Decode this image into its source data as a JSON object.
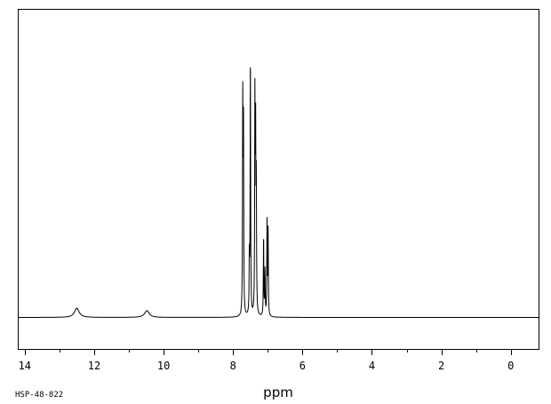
{
  "chart_data": {
    "type": "line",
    "title": "",
    "xlabel": "ppm",
    "ylabel": "",
    "x_reversed": true,
    "xlim": [
      14.2,
      -0.8
    ],
    "ylim": [
      0,
      1.0
    ],
    "x_ticks_major": [
      14,
      12,
      10,
      8,
      6,
      4,
      2,
      0
    ],
    "x_tick_labels": [
      "14",
      "12",
      "10",
      "8",
      "6",
      "4",
      "2",
      "0"
    ],
    "x_ticks_minor": [
      13,
      11,
      9,
      7,
      5,
      3,
      1
    ],
    "grid": false,
    "legend": "none",
    "baseline": 0.05,
    "series": [
      {
        "peaks": [
          {
            "ppm": 12.5,
            "height": 0.033,
            "width": 0.08
          },
          {
            "ppm": 10.48,
            "height": 0.024,
            "width": 0.08
          },
          {
            "ppm": 7.72,
            "height": 0.74,
            "width": 0.008
          },
          {
            "ppm": 7.7,
            "height": 0.68,
            "width": 0.008
          },
          {
            "ppm": 7.53,
            "height": 0.2,
            "width": 0.008
          },
          {
            "ppm": 7.5,
            "height": 0.92,
            "width": 0.008
          },
          {
            "ppm": 7.37,
            "height": 0.74,
            "width": 0.008
          },
          {
            "ppm": 7.35,
            "height": 0.62,
            "width": 0.008
          },
          {
            "ppm": 7.33,
            "height": 0.44,
            "width": 0.008
          },
          {
            "ppm": 7.12,
            "height": 0.28,
            "width": 0.008
          },
          {
            "ppm": 7.08,
            "height": 0.16,
            "width": 0.008
          },
          {
            "ppm": 7.02,
            "height": 0.33,
            "width": 0.008
          },
          {
            "ppm": 6.99,
            "height": 0.3,
            "width": 0.008
          }
        ]
      }
    ],
    "colors": {
      "line": "#000000",
      "frame": "#000000",
      "background": "#ffffff"
    }
  },
  "footer": {
    "sample_id": "HSP-48-822"
  }
}
